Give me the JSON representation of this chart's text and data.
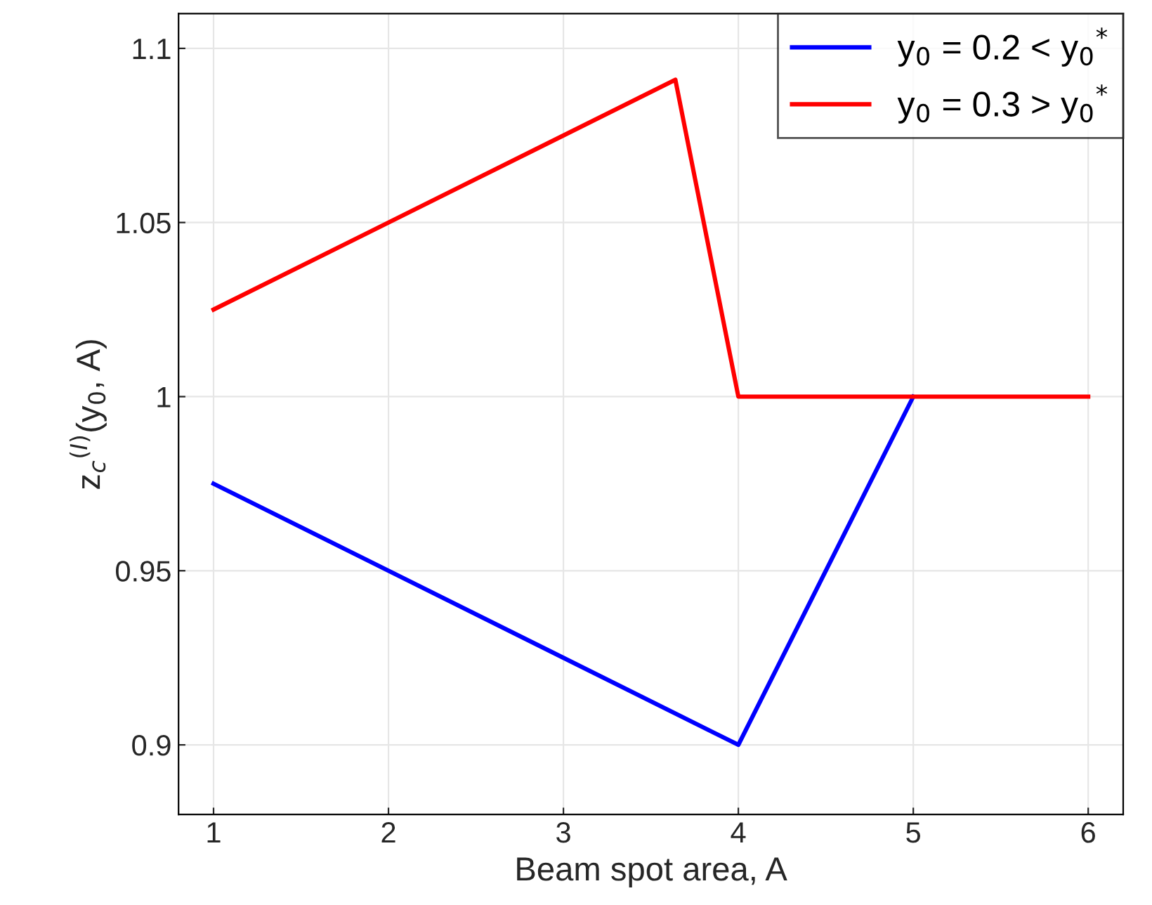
{
  "chart_data": {
    "type": "line",
    "xlabel": "Beam spot area, A",
    "ylabel": "z$_{c}$$^{(I)}$(y$_{0}$, A)",
    "xlim": [
      0.8,
      6.2
    ],
    "xticks": [
      1,
      2,
      3,
      4,
      5,
      6
    ],
    "ylim": [
      0.88,
      1.11
    ],
    "yticks": [
      0.9,
      0.95,
      1,
      1.05,
      1.1
    ],
    "grid": true,
    "legend": "top right",
    "line_style": "solid",
    "marker": "none",
    "series": [
      {
        "name": "y$_{0}$ = 0.2 < y$_{0}$$^{*}$",
        "color": "#0000ff",
        "x": [
          1,
          4,
          5
        ],
        "values": [
          0.975,
          0.9,
          1
        ]
      },
      {
        "name": "y$_{0}$ = 0.3 > y$_{0}$$^{*}$",
        "color": "#ff0000",
        "x": [
          1,
          3.64,
          4,
          5,
          6
        ],
        "values": [
          1.025,
          1.091,
          1,
          1,
          1
        ]
      }
    ]
  }
}
